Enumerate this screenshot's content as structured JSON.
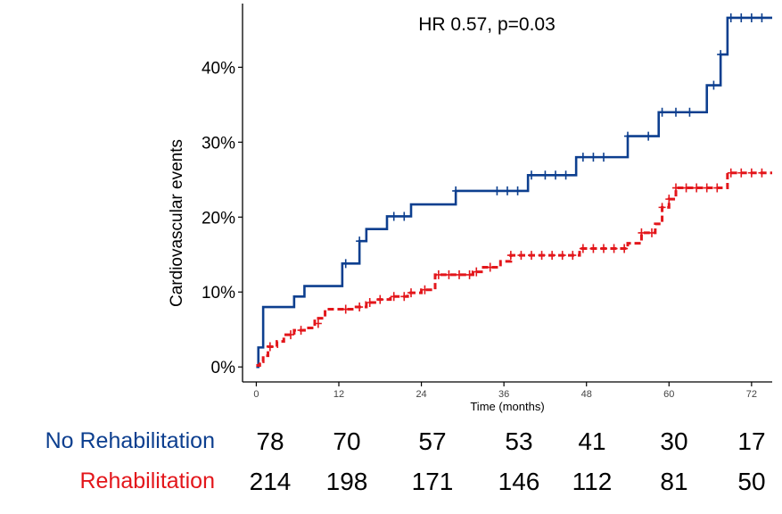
{
  "chart_data": {
    "type": "line",
    "subtype": "kaplan-meier-step",
    "annotation": "HR 0.57, p=0.03",
    "xlabel": "Time (months)",
    "ylabel": "Cardiovascular events",
    "xlim": [
      -2,
      75
    ],
    "ylim": [
      -2,
      48.5
    ],
    "x_ticks": [
      0,
      12,
      24,
      36,
      48,
      60,
      72
    ],
    "x_tick_labels": [
      "0",
      "12",
      "24",
      "36",
      "48",
      "60",
      "72"
    ],
    "y_ticks": [
      0,
      10,
      20,
      30,
      40
    ],
    "y_tick_labels": [
      "0%",
      "10%",
      "20%",
      "30%",
      "40%"
    ],
    "grid": false,
    "series": [
      {
        "name": "No Rehabilitation",
        "color": "#0d3f8f",
        "line_style": "solid",
        "steps": [
          [
            0,
            0
          ],
          [
            0.3,
            2.6
          ],
          [
            1,
            8.0
          ],
          [
            5.5,
            9.4
          ],
          [
            7,
            10.8
          ],
          [
            12.5,
            13.8
          ],
          [
            15,
            16.8
          ],
          [
            16,
            18.4
          ],
          [
            19,
            20.1
          ],
          [
            22.5,
            21.7
          ],
          [
            29,
            23.5
          ],
          [
            39.5,
            25.6
          ],
          [
            46.5,
            28.0
          ],
          [
            54,
            30.8
          ],
          [
            58.5,
            34.0
          ],
          [
            65.5,
            37.6
          ],
          [
            67.5,
            41.7
          ],
          [
            68.5,
            46.6
          ],
          [
            75,
            46.6
          ]
        ],
        "censors": [
          [
            13,
            13.8
          ],
          [
            15,
            16.8
          ],
          [
            20,
            20.1
          ],
          [
            21.5,
            20.1
          ],
          [
            29,
            23.5
          ],
          [
            35,
            23.5
          ],
          [
            36.5,
            23.5
          ],
          [
            38,
            23.5
          ],
          [
            40,
            25.6
          ],
          [
            42,
            25.6
          ],
          [
            43.5,
            25.6
          ],
          [
            45,
            25.6
          ],
          [
            47.5,
            28.0
          ],
          [
            49,
            28.0
          ],
          [
            50.5,
            28.0
          ],
          [
            54,
            30.8
          ],
          [
            57,
            30.8
          ],
          [
            59,
            34.0
          ],
          [
            61,
            34.0
          ],
          [
            63,
            34.0
          ],
          [
            66.5,
            37.6
          ],
          [
            67.5,
            41.7
          ],
          [
            69,
            46.6
          ],
          [
            70.5,
            46.6
          ],
          [
            72,
            46.6
          ],
          [
            73.5,
            46.6
          ]
        ]
      },
      {
        "name": "Rehabilitation",
        "color": "#e3161b",
        "line_style": "dashed",
        "steps": [
          [
            0,
            0.2
          ],
          [
            0.5,
            0.7
          ],
          [
            1,
            1.5
          ],
          [
            1.7,
            2.7
          ],
          [
            3,
            3.4
          ],
          [
            4,
            4.3
          ],
          [
            5.5,
            4.9
          ],
          [
            7,
            5.2
          ],
          [
            8.5,
            6.5
          ],
          [
            10,
            7.7
          ],
          [
            14.5,
            8.0
          ],
          [
            16,
            8.6
          ],
          [
            17.5,
            9.0
          ],
          [
            19.5,
            9.4
          ],
          [
            22,
            9.9
          ],
          [
            24,
            10.3
          ],
          [
            26,
            12.3
          ],
          [
            31.5,
            12.7
          ],
          [
            33,
            13.3
          ],
          [
            35.5,
            14.1
          ],
          [
            37,
            14.9
          ],
          [
            47,
            15.8
          ],
          [
            54,
            16.5
          ],
          [
            56,
            17.9
          ],
          [
            58,
            19.1
          ],
          [
            59,
            21.3
          ],
          [
            60,
            22.4
          ],
          [
            61,
            23.9
          ],
          [
            68.5,
            25.9
          ],
          [
            75,
            25.9
          ]
        ],
        "censors": [
          [
            2,
            2.7
          ],
          [
            5,
            4.3
          ],
          [
            6.5,
            4.9
          ],
          [
            9,
            5.8
          ],
          [
            13,
            7.7
          ],
          [
            15,
            8.0
          ],
          [
            16.5,
            8.6
          ],
          [
            18,
            9.0
          ],
          [
            20,
            9.4
          ],
          [
            21.5,
            9.4
          ],
          [
            22.5,
            9.9
          ],
          [
            24.5,
            10.3
          ],
          [
            26.5,
            12.3
          ],
          [
            28,
            12.3
          ],
          [
            29.5,
            12.3
          ],
          [
            31,
            12.3
          ],
          [
            32,
            12.7
          ],
          [
            34,
            13.3
          ],
          [
            37,
            14.9
          ],
          [
            38.5,
            14.9
          ],
          [
            40,
            14.9
          ],
          [
            41.5,
            14.9
          ],
          [
            43,
            14.9
          ],
          [
            44.5,
            14.9
          ],
          [
            46,
            14.9
          ],
          [
            47.5,
            15.8
          ],
          [
            49,
            15.8
          ],
          [
            50.5,
            15.8
          ],
          [
            52,
            15.8
          ],
          [
            53.5,
            15.8
          ],
          [
            56,
            17.9
          ],
          [
            57.5,
            17.9
          ],
          [
            59,
            21.3
          ],
          [
            60,
            22.4
          ],
          [
            61,
            23.9
          ],
          [
            62.5,
            23.9
          ],
          [
            64,
            23.9
          ],
          [
            65.5,
            23.9
          ],
          [
            67,
            23.9
          ],
          [
            69,
            25.9
          ],
          [
            70.5,
            25.9
          ],
          [
            72,
            25.9
          ],
          [
            73.5,
            25.9
          ]
        ]
      }
    ],
    "risk_table": {
      "times": [
        0,
        12,
        24,
        36,
        48,
        60,
        72
      ],
      "rows": [
        {
          "label": "No Rehabilitation",
          "color": "#0d3f8f",
          "values": [
            "78",
            "70",
            "57",
            "53",
            "41",
            "30",
            "17"
          ]
        },
        {
          "label": "Rehabilitation",
          "color": "#e3161b",
          "values": [
            "214",
            "198",
            "171",
            "146",
            "112",
            "81",
            "50"
          ]
        }
      ]
    }
  }
}
